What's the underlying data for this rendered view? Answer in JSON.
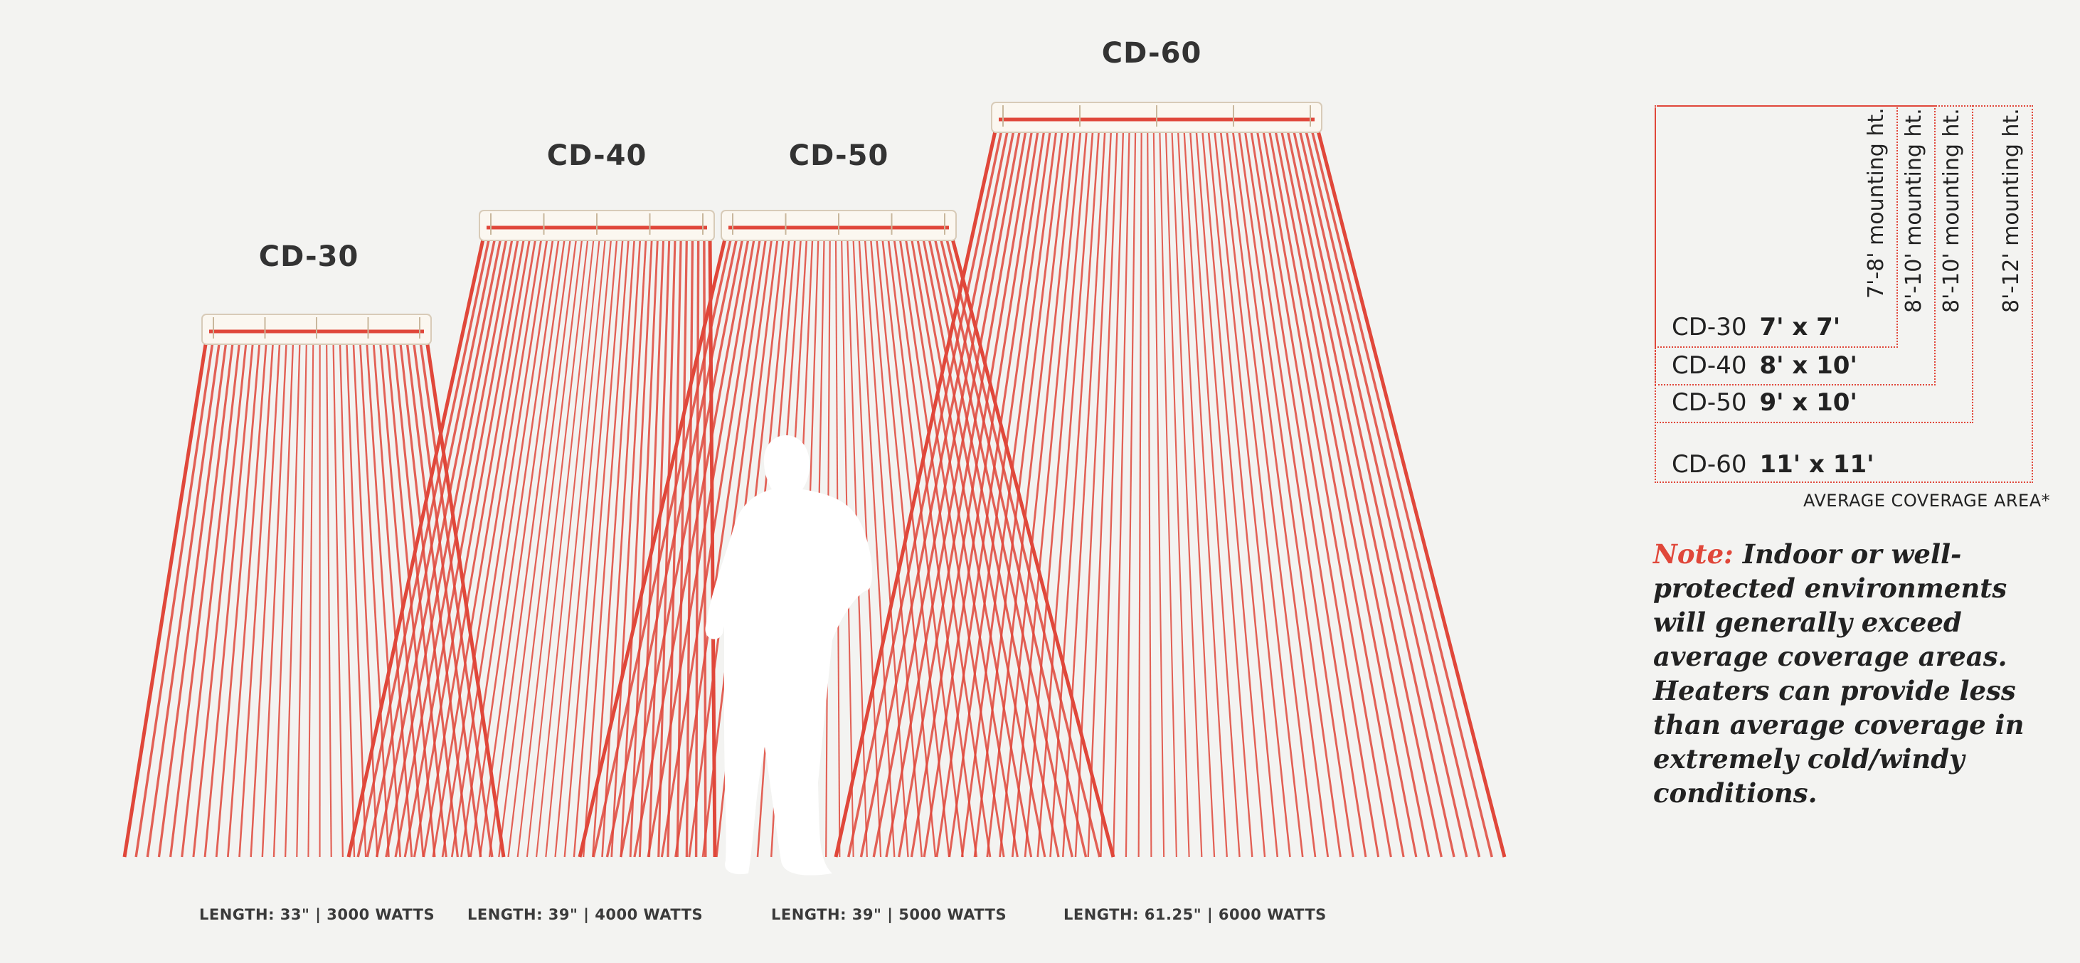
{
  "models": [
    {
      "title": "CD-30",
      "spec": "LENGTH: 33\" | 3000 WATTS"
    },
    {
      "title": "CD-40",
      "spec": "LENGTH: 39\" | 4000 WATTS"
    },
    {
      "title": "CD-50",
      "spec": "LENGTH: 39\" | 5000 WATTS"
    },
    {
      "title": "CD-60",
      "spec": "LENGTH: 61.25\" | 6000 WATTS"
    }
  ],
  "coverage_table": {
    "rows": [
      {
        "model": "CD-30",
        "dims": "7' x 7'",
        "mounting": "7'-8' mounting ht."
      },
      {
        "model": "CD-40",
        "dims": "8' x 10'",
        "mounting": "8'-10' mounting ht."
      },
      {
        "model": "CD-50",
        "dims": "9' x 10'",
        "mounting": "8'-10' mounting ht."
      },
      {
        "model": "CD-60",
        "dims": "11' x 11'",
        "mounting": "8'-12' mounting ht."
      }
    ],
    "caption": "AVERAGE COVERAGE AREA*"
  },
  "note": {
    "label": "Note:",
    "text": "Indoor or well-protected environments will generally exceed average coverage areas. Heaters can provide less than average coverage in extremely cold/windy conditions."
  },
  "colors": {
    "ray": "#e0473a",
    "background": "#f3f3f1",
    "person": "#ffffff",
    "heater_body": "#fbf7f0"
  }
}
